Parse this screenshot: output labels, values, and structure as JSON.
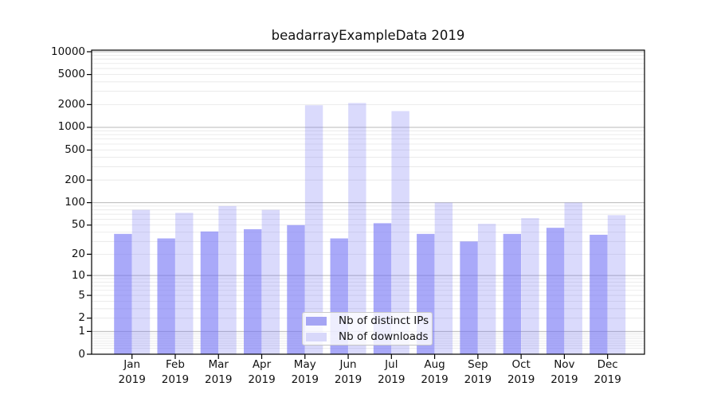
{
  "page": {
    "background": "#ffffff"
  },
  "chart_data": {
    "type": "bar",
    "title": "beadarrayExampleData 2019",
    "categories": [
      "Jan",
      "Feb",
      "Mar",
      "Apr",
      "May",
      "Jun",
      "Jul",
      "Aug",
      "Sep",
      "Oct",
      "Nov",
      "Dec"
    ],
    "year_label": "2019",
    "series": [
      {
        "name": "Nb of distinct IPs",
        "color": "#6a6af5",
        "opacity": 0.58,
        "legend_color": "#a5a5f4",
        "values": [
          38,
          33,
          41,
          44,
          50,
          33,
          53,
          38,
          30,
          38,
          46,
          37
        ]
      },
      {
        "name": "Nb of downloads",
        "color": "#6a6af5",
        "opacity": 0.25,
        "legend_color": "#d8d8fa",
        "values": [
          80,
          73,
          90,
          80,
          1960,
          2100,
          1640,
          100,
          52,
          62,
          100,
          68
        ]
      }
    ],
    "y_ticks": [
      0,
      1,
      2,
      5,
      10,
      20,
      50,
      100,
      200,
      500,
      1000,
      2000,
      5000,
      10000
    ],
    "y_tick_labels": [
      "0",
      "1",
      "2",
      "5",
      "10",
      "20",
      "50",
      "100",
      "200",
      "500",
      "1000",
      "2000",
      "5000",
      "10000"
    ],
    "ylim": [
      0,
      10000
    ],
    "y_scale": "log1p",
    "grid": true,
    "legend_position": "lower-center-inside",
    "axis_color": "#000000",
    "major_grid_color": "#b9b9b9",
    "minor_grid_color": "#e6e6e6"
  }
}
